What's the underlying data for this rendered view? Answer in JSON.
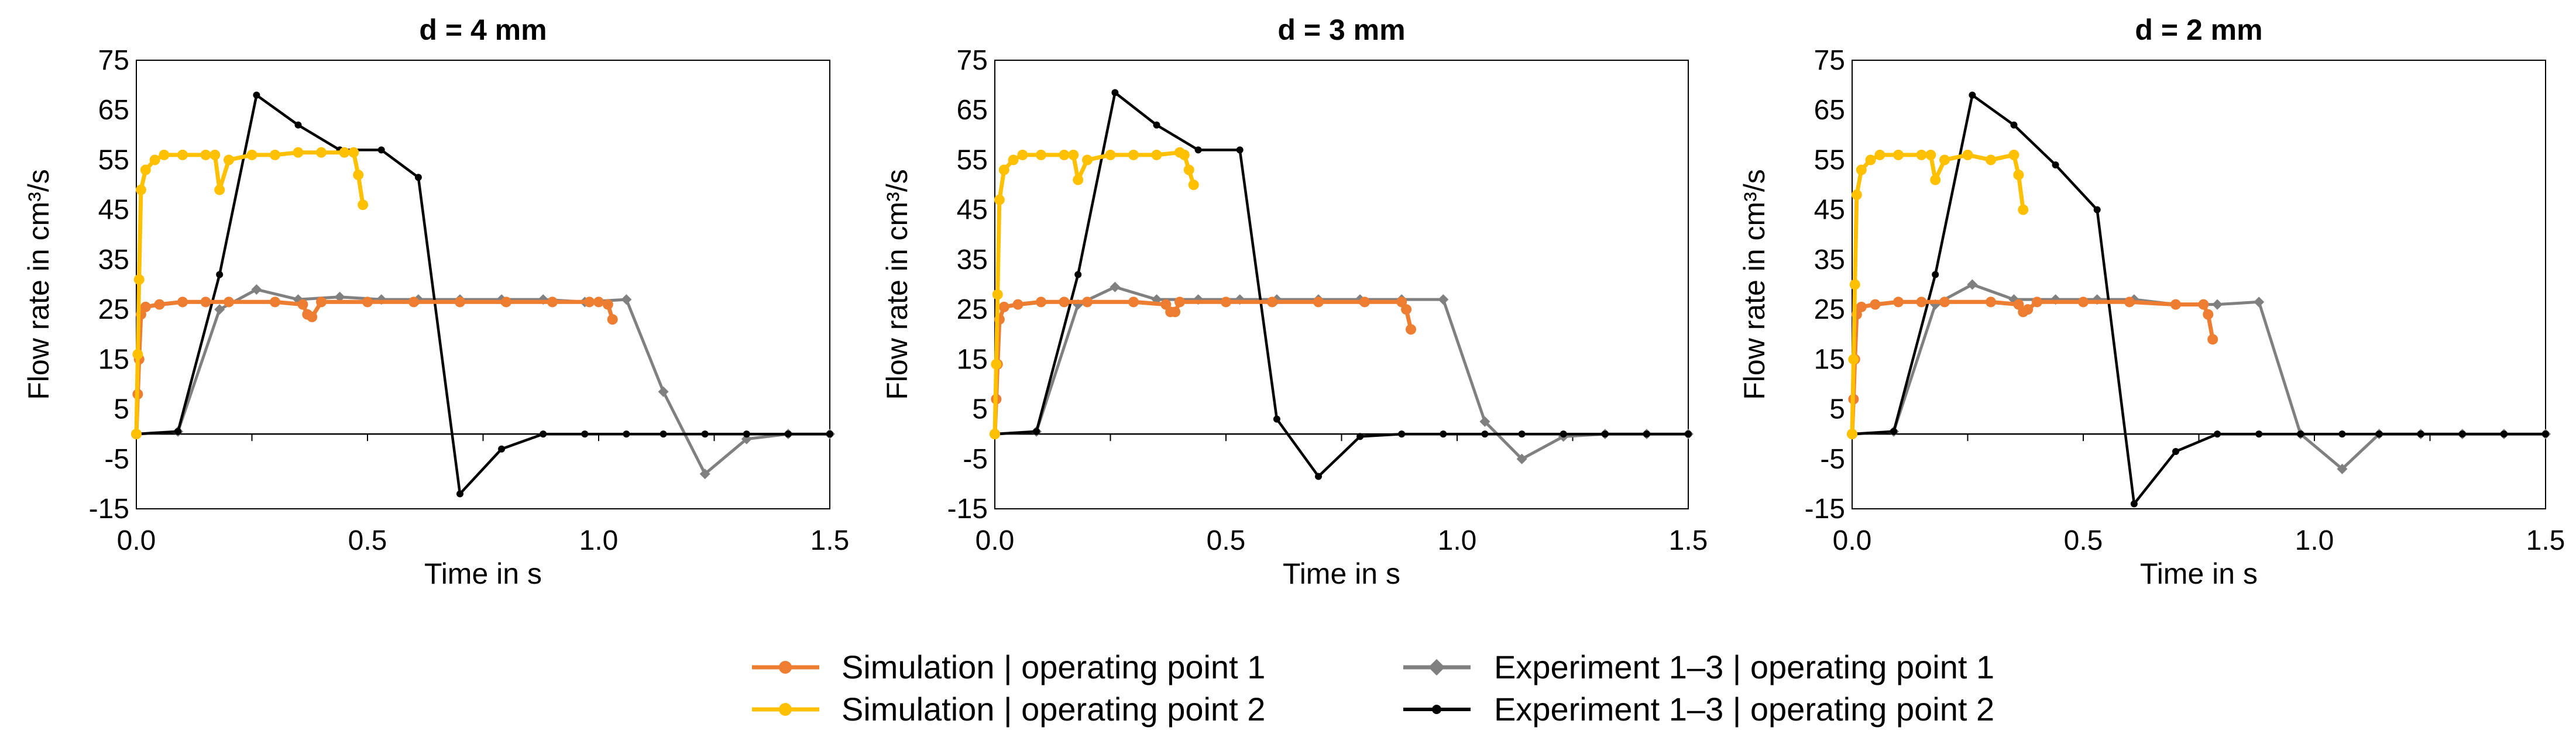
{
  "colors": {
    "sim_op1": "#ED7D31",
    "sim_op2": "#FFC000",
    "exp_op1": "#808080",
    "exp_op2": "#000000",
    "axis": "#000000"
  },
  "legend": {
    "sim_op1": "Simulation | operating point 1",
    "sim_op2": "Simulation | operating point 2",
    "exp_op1": "Experiment 1–3 | operating point 1",
    "exp_op2": "Experiment 1–3 | operating point 2"
  },
  "chart_data": [
    {
      "type": "line",
      "title": "d = 4 mm",
      "xlabel": "Time in s",
      "ylabel": "Flow rate in cm³/s",
      "xlim": [
        0,
        1.5
      ],
      "ylim": [
        -15,
        75
      ],
      "xticks": [
        "0.0",
        "0.5",
        "1.0",
        "1.5"
      ],
      "yticks": [
        "75",
        "65",
        "55",
        "45",
        "35",
        "25",
        "15",
        "5",
        "-5",
        "-15"
      ],
      "series": [
        {
          "key": "exp_op1",
          "name": "Experiment 1–3 | operating point 1",
          "x": [
            0,
            0.09,
            0.18,
            0.26,
            0.35,
            0.44,
            0.53,
            0.61,
            0.7,
            0.79,
            0.88,
            0.97,
            1.06,
            1.14,
            1.23,
            1.32,
            1.41,
            1.5
          ],
          "y": [
            0,
            0.5,
            25,
            29,
            27,
            27.5,
            27,
            27,
            27,
            27,
            27,
            26.5,
            27,
            8.5,
            -8,
            -1,
            0,
            0
          ]
        },
        {
          "key": "exp_op2",
          "name": "Experiment 1–3 | operating point 2",
          "x": [
            0,
            0.09,
            0.18,
            0.26,
            0.35,
            0.44,
            0.53,
            0.61,
            0.7,
            0.79,
            0.88,
            0.97,
            1.06,
            1.14,
            1.23,
            1.32,
            1.41,
            1.5
          ],
          "y": [
            0,
            0.5,
            32,
            68,
            62,
            57,
            57,
            51.5,
            -12,
            -3,
            0,
            0,
            0,
            0,
            0,
            0,
            0,
            0
          ]
        },
        {
          "key": "sim_op1",
          "name": "Simulation | operating point 1",
          "x": [
            0,
            0.003,
            0.006,
            0.01,
            0.02,
            0.05,
            0.1,
            0.15,
            0.2,
            0.3,
            0.36,
            0.37,
            0.38,
            0.4,
            0.5,
            0.6,
            0.7,
            0.8,
            0.9,
            0.98,
            1.0,
            1.02,
            1.03
          ],
          "y": [
            0,
            8,
            15,
            24,
            25.5,
            26,
            26.5,
            26.5,
            26.5,
            26.5,
            26,
            24,
            23.5,
            26.5,
            26.5,
            26.5,
            26.5,
            26.5,
            26.5,
            26.5,
            26.5,
            26,
            23
          ]
        },
        {
          "key": "sim_op2",
          "name": "Simulation | operating point 2",
          "x": [
            0,
            0.003,
            0.006,
            0.01,
            0.02,
            0.04,
            0.06,
            0.1,
            0.15,
            0.17,
            0.18,
            0.2,
            0.25,
            0.3,
            0.35,
            0.4,
            0.45,
            0.47,
            0.48,
            0.49
          ],
          "y": [
            0,
            16,
            31,
            49,
            53,
            55,
            56,
            56,
            56,
            56,
            49,
            55,
            56,
            56,
            56.5,
            56.5,
            56.5,
            56.5,
            52,
            46
          ]
        }
      ]
    },
    {
      "type": "line",
      "title": "d = 3 mm",
      "xlabel": "Time in s",
      "ylabel": "Flow rate in cm³/s",
      "xlim": [
        0,
        1.5
      ],
      "ylim": [
        -15,
        75
      ],
      "xticks": [
        "0.0",
        "0.5",
        "1.0",
        "1.5"
      ],
      "yticks": [
        "75",
        "65",
        "55",
        "45",
        "35",
        "25",
        "15",
        "5",
        "-5",
        "-15"
      ],
      "series": [
        {
          "key": "exp_op1",
          "name": "Experiment 1–3 | operating point 1",
          "x": [
            0,
            0.09,
            0.18,
            0.26,
            0.35,
            0.44,
            0.53,
            0.61,
            0.7,
            0.79,
            0.88,
            0.97,
            1.06,
            1.14,
            1.23,
            1.32,
            1.41,
            1.5
          ],
          "y": [
            0,
            0.5,
            26,
            29.5,
            27,
            27,
            27,
            27,
            27,
            27,
            27,
            27,
            2.5,
            -5,
            -0.5,
            0,
            0,
            0
          ]
        },
        {
          "key": "exp_op2",
          "name": "Experiment 1–3 | operating point 2",
          "x": [
            0,
            0.09,
            0.18,
            0.26,
            0.35,
            0.44,
            0.53,
            0.61,
            0.7,
            0.79,
            0.88,
            0.97,
            1.06,
            1.14,
            1.23,
            1.32,
            1.41,
            1.5
          ],
          "y": [
            0,
            0.5,
            32,
            68.5,
            62,
            57,
            57,
            3,
            -8.5,
            -0.5,
            0,
            0,
            0,
            0,
            0,
            0,
            0,
            0
          ]
        },
        {
          "key": "sim_op1",
          "name": "Simulation | operating point 1",
          "x": [
            0,
            0.003,
            0.006,
            0.01,
            0.02,
            0.05,
            0.1,
            0.15,
            0.2,
            0.3,
            0.37,
            0.38,
            0.39,
            0.4,
            0.5,
            0.6,
            0.7,
            0.8,
            0.88,
            0.89,
            0.9
          ],
          "y": [
            0,
            7,
            14,
            23,
            25.5,
            26,
            26.5,
            26.5,
            26.5,
            26.5,
            26,
            24.5,
            24.5,
            26.5,
            26.5,
            26.5,
            26.5,
            26.5,
            26.5,
            25,
            21
          ]
        },
        {
          "key": "sim_op2",
          "name": "Simulation | operating point 2",
          "x": [
            0,
            0.003,
            0.006,
            0.01,
            0.02,
            0.04,
            0.06,
            0.1,
            0.15,
            0.17,
            0.18,
            0.2,
            0.25,
            0.3,
            0.35,
            0.4,
            0.41,
            0.42,
            0.43
          ],
          "y": [
            0,
            14,
            28,
            47,
            53,
            55,
            56,
            56,
            56,
            56,
            51,
            55,
            56,
            56,
            56,
            56.5,
            56,
            53,
            50
          ]
        }
      ]
    },
    {
      "type": "line",
      "title": "d = 2 mm",
      "xlabel": "Time in s",
      "ylabel": "Flow rate in cm³/s",
      "xlim": [
        0,
        1.5
      ],
      "ylim": [
        -15,
        75
      ],
      "xticks": [
        "0.0",
        "0.5",
        "1.0",
        "1.5"
      ],
      "yticks": [
        "75",
        "65",
        "55",
        "45",
        "35",
        "25",
        "15",
        "5",
        "-5",
        "-15"
      ],
      "series": [
        {
          "key": "exp_op1",
          "name": "Experiment 1–3 | operating point 1",
          "x": [
            0,
            0.09,
            0.18,
            0.26,
            0.35,
            0.44,
            0.53,
            0.61,
            0.7,
            0.79,
            0.88,
            0.97,
            1.06,
            1.14,
            1.23,
            1.32,
            1.41,
            1.5
          ],
          "y": [
            0,
            0.5,
            26,
            30,
            27,
            27,
            27,
            27,
            26,
            26,
            26.5,
            0,
            -7,
            0,
            0,
            0,
            0,
            0
          ]
        },
        {
          "key": "exp_op2",
          "name": "Experiment 1–3 | operating point 2",
          "x": [
            0,
            0.09,
            0.18,
            0.26,
            0.35,
            0.44,
            0.53,
            0.61,
            0.7,
            0.79,
            0.88,
            0.97,
            1.06,
            1.14,
            1.23,
            1.32,
            1.41,
            1.5
          ],
          "y": [
            0,
            0.5,
            32,
            68,
            62,
            54,
            45,
            -14,
            -3.5,
            0,
            0,
            0,
            0,
            0,
            0,
            0,
            0,
            0
          ]
        },
        {
          "key": "sim_op1",
          "name": "Simulation | operating point 1",
          "x": [
            0,
            0.003,
            0.006,
            0.01,
            0.02,
            0.05,
            0.1,
            0.15,
            0.2,
            0.3,
            0.36,
            0.37,
            0.38,
            0.4,
            0.5,
            0.6,
            0.7,
            0.76,
            0.77,
            0.78
          ],
          "y": [
            0,
            7,
            15,
            24,
            25.5,
            26,
            26.5,
            26.5,
            26.5,
            26.5,
            26,
            24.5,
            25,
            26.5,
            26.5,
            26.5,
            26,
            26,
            24,
            19
          ]
        },
        {
          "key": "sim_op2",
          "name": "Simulation | operating point 2",
          "x": [
            0,
            0.003,
            0.006,
            0.01,
            0.02,
            0.04,
            0.06,
            0.1,
            0.15,
            0.17,
            0.18,
            0.2,
            0.25,
            0.3,
            0.35,
            0.36,
            0.37
          ],
          "y": [
            0,
            15,
            30,
            48,
            53,
            55,
            56,
            56,
            56,
            56,
            51,
            55,
            56,
            55,
            56,
            52,
            45
          ]
        }
      ]
    }
  ]
}
